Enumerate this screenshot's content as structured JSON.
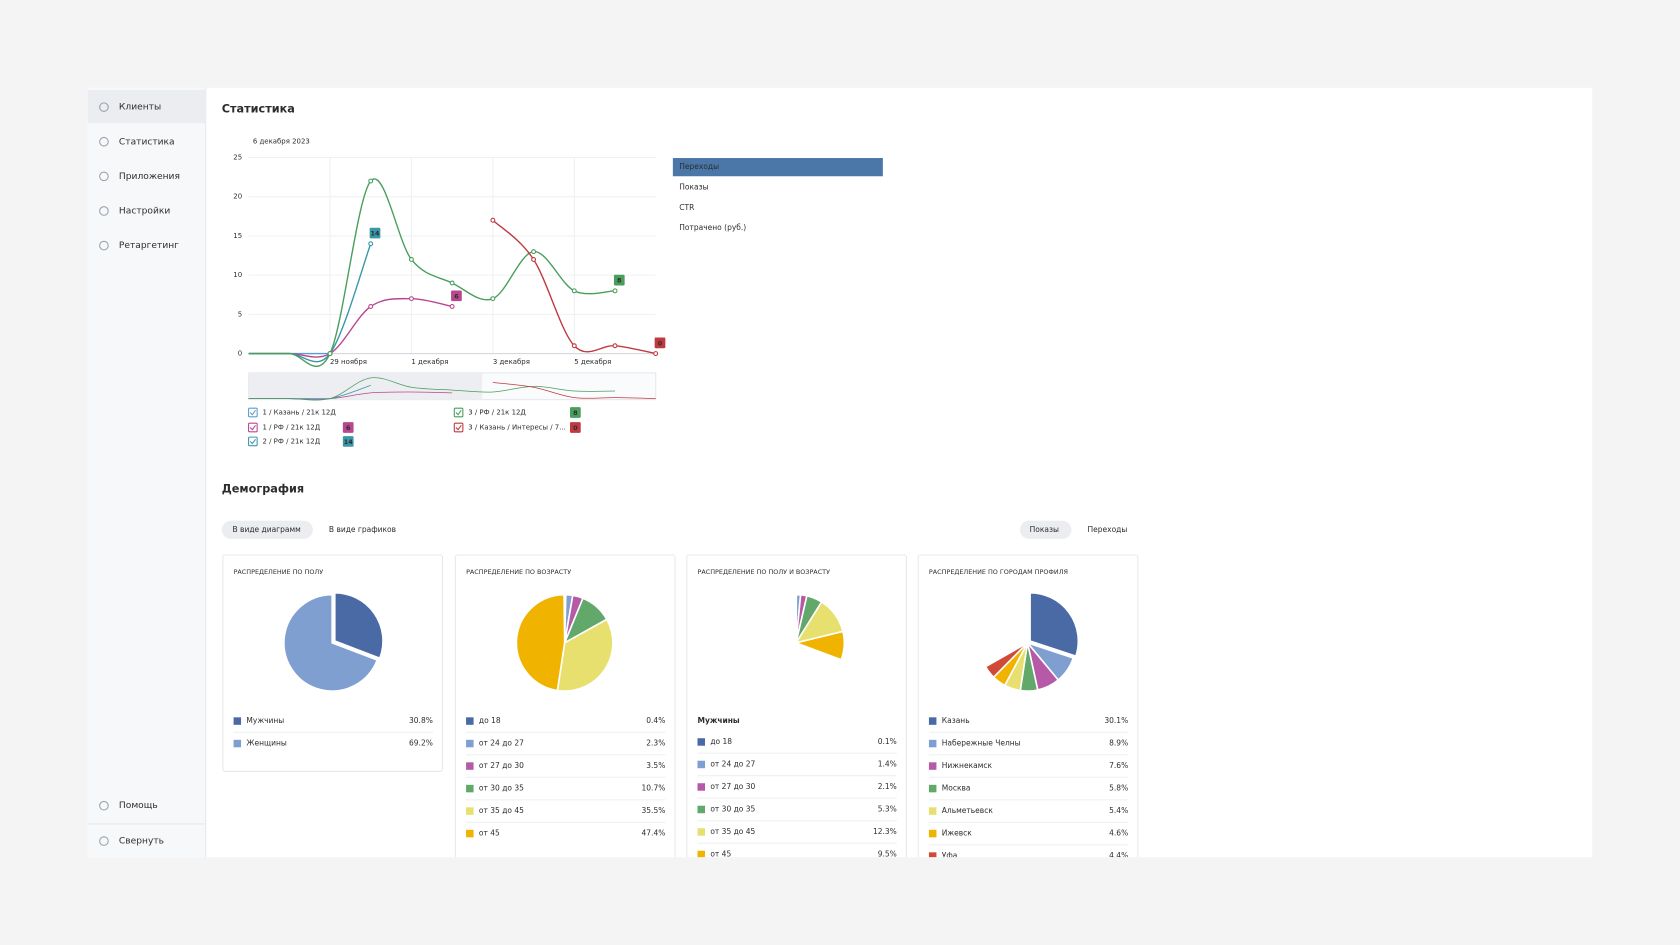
{
  "sidebar": {
    "items": [
      "Клиенты",
      "Статистика",
      "Приложения",
      "Настройки",
      "Ретаргетинг"
    ],
    "active": 0,
    "footer": [
      "Помощь",
      "Свернуть"
    ]
  },
  "statistics": {
    "title": "Статистика",
    "metrics": [
      "Переходы",
      "Показы",
      "CTR",
      "Потрачено (руб.)"
    ],
    "selected_metric": 0
  },
  "chart_data": {
    "type": "line",
    "date_label": "6 декабря 2023",
    "categories": [
      null,
      null,
      "29 ноября",
      null,
      "1 декабря",
      null,
      "3 декабря",
      null,
      "5 декабря",
      null,
      null
    ],
    "ylim": [
      0,
      25
    ],
    "yticks": [
      0,
      5,
      10,
      15,
      20,
      25
    ],
    "grid": true,
    "series": [
      {
        "name": "1 / Казань / 21к 12Д",
        "color": "#5c9bd1",
        "values": [
          0,
          0,
          0,
          null,
          null,
          null,
          null,
          null,
          null,
          null,
          null
        ]
      },
      {
        "name": "1 / РФ / 21к 12Д",
        "color": "#b8478f",
        "values": [
          0,
          0,
          0,
          6,
          7,
          6,
          null,
          null,
          null,
          null,
          null
        ]
      },
      {
        "name": "2 / РФ / 21к 12Д",
        "color": "#3a97a8",
        "values": [
          0,
          0,
          0,
          14,
          null,
          null,
          null,
          null,
          null,
          null,
          null
        ]
      },
      {
        "name": "3 / РФ / 21к 12Д",
        "color": "#4a9e5c",
        "values": [
          0,
          0,
          0,
          22,
          12,
          9,
          7,
          13,
          8,
          8,
          null
        ]
      },
      {
        "name": "3 / Казань / Интересы / 7...",
        "color": "#c0393f",
        "values": [
          null,
          null,
          null,
          null,
          null,
          null,
          17,
          12,
          1,
          1,
          0
        ]
      }
    ]
  },
  "demography": {
    "title": "Демография",
    "view_tabs": [
      "В виде диаграмм",
      "В виде графиков"
    ],
    "metric_tabs": [
      "Показы",
      "Переходы"
    ],
    "cards": [
      {
        "title": "РАСПРЕДЕЛЕНИЕ ПО ПОЛУ",
        "chart": {
          "type": "pie",
          "categories": [
            "Мужчины",
            "Женщины"
          ],
          "values": [
            30.8,
            69.2
          ],
          "value_labels": [
            "30.8%",
            "69.2%"
          ],
          "colors": [
            "#4a6aa6",
            "#7f9fd0"
          ]
        }
      },
      {
        "title": "РАСПРЕДЕЛЕНИЕ ПО ВОЗРАСТУ",
        "chart": {
          "type": "pie",
          "categories": [
            "до 18",
            "от 24 до 27",
            "от 27 до 30",
            "от 30 до 35",
            "от 35 до 45",
            "от 45"
          ],
          "values": [
            0.4,
            2.3,
            3.5,
            10.7,
            35.5,
            47.4
          ],
          "value_labels": [
            "0.4%",
            "2.3%",
            "3.5%",
            "10.7%",
            "35.5%",
            "47.4%"
          ],
          "colors": [
            "#4a6aa6",
            "#7f9fd0",
            "#b65aa8",
            "#62a86a",
            "#e8e06e",
            "#f0b400"
          ]
        }
      },
      {
        "title": "РАСПРЕДЕЛЕНИЕ ПО ПОЛУ И ВОЗРАСТУ",
        "chart": {
          "type": "pie",
          "group_label": "Мужчины",
          "categories": [
            "до 18",
            "от 24 до 27",
            "от 27 до 30",
            "от 30 до 35",
            "от 35 до 45",
            "от 45"
          ],
          "values": [
            0.1,
            1.4,
            2.1,
            5.3,
            12.3,
            9.5
          ],
          "value_labels": [
            "0.1%",
            "1.4%",
            "2.1%",
            "5.3%",
            "12.3%",
            "9.5%"
          ],
          "colors": [
            "#4a6aa6",
            "#7f9fd0",
            "#b65aa8",
            "#62a86a",
            "#e8e06e",
            "#f0b400"
          ]
        }
      },
      {
        "title": "РАСПРЕДЕЛЕНИЕ ПО ГОРОДАМ ПРОФИЛЯ",
        "chart": {
          "type": "pie",
          "categories": [
            "Казань",
            "Набережные Челны",
            "Нижнекамск",
            "Москва",
            "Альметьевск",
            "Ижевск",
            "Уфа"
          ],
          "values": [
            30.1,
            8.9,
            7.6,
            5.8,
            5.4,
            4.6,
            4.4
          ],
          "value_labels": [
            "30.1%",
            "8.9%",
            "7.6%",
            "5.8%",
            "5.4%",
            "4.6%",
            "4.4%"
          ],
          "colors": [
            "#4a6aa6",
            "#7f9fd0",
            "#b65aa8",
            "#62a86a",
            "#e8e06e",
            "#f0b400",
            "#d04a3a"
          ]
        }
      }
    ]
  }
}
